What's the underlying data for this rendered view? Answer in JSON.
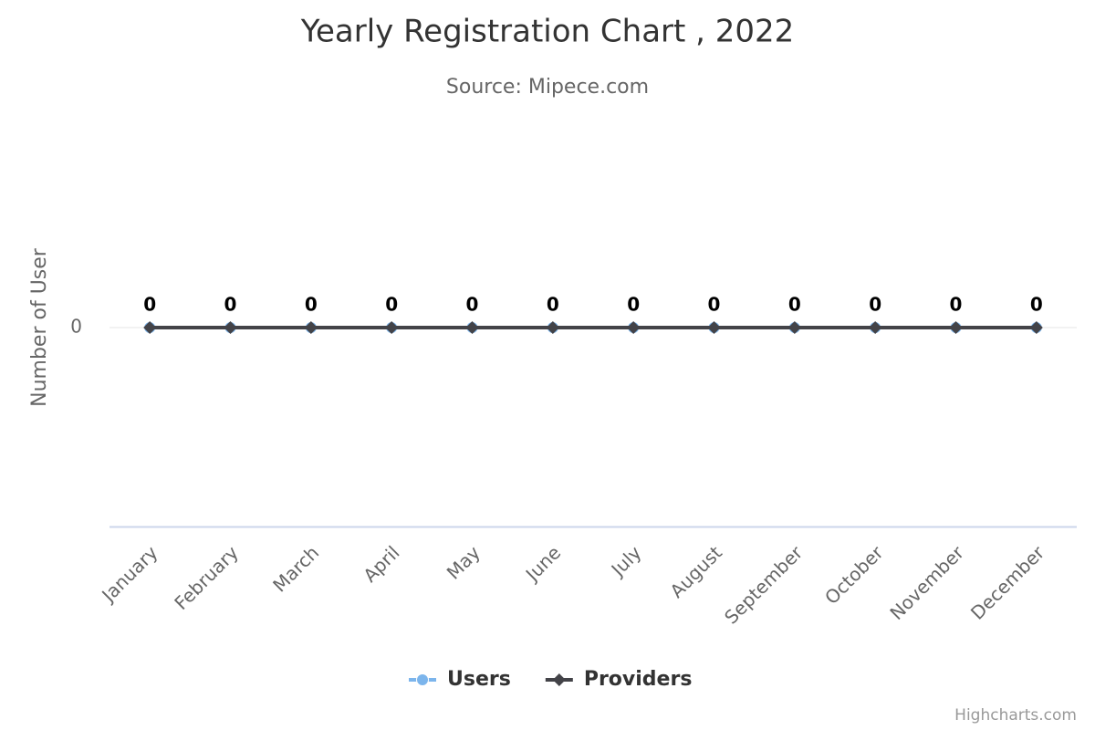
{
  "chart_data": {
    "type": "line",
    "title": "Yearly Registration Chart , 2022",
    "subtitle": "Source: Mipece.com",
    "y_label": "Number of User",
    "categories": [
      "January",
      "February",
      "March",
      "April",
      "May",
      "June",
      "July",
      "August",
      "September",
      "October",
      "November",
      "December"
    ],
    "series": [
      {
        "name": "Users",
        "color": "#7cb5ec",
        "marker": "circle",
        "values": [
          0,
          0,
          0,
          0,
          0,
          0,
          0,
          0,
          0,
          0,
          0,
          0
        ]
      },
      {
        "name": "Providers",
        "color": "#434348",
        "marker": "diamond",
        "values": [
          0,
          0,
          0,
          0,
          0,
          0,
          0,
          0,
          0,
          0,
          0,
          0
        ]
      }
    ],
    "ylim": [
      -1,
      1
    ],
    "yticks": [
      0
    ],
    "grid": true,
    "legend": "bottom",
    "credits": "Highcharts.com"
  }
}
